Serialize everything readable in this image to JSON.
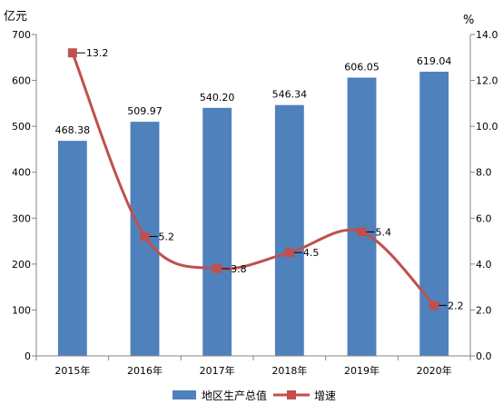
{
  "chart_data": {
    "type": "bar",
    "categories": [
      "2015年",
      "2016年",
      "2017年",
      "2018年",
      "2019年",
      "2020年"
    ],
    "series": [
      {
        "name": "地区生产总值",
        "type": "bar",
        "axis": "left",
        "color": "#4f81bd",
        "values": [
          468.38,
          509.97,
          540.2,
          546.34,
          606.05,
          619.04
        ],
        "labels": [
          "468.38",
          "509.97",
          "540.20",
          "546.34",
          "606.05",
          "619.04"
        ]
      },
      {
        "name": "增速",
        "type": "line",
        "axis": "right",
        "color": "#c0504d",
        "values": [
          13.2,
          5.2,
          3.8,
          4.5,
          5.4,
          2.2
        ],
        "labels": [
          "13.2",
          "5.2",
          "3.8",
          "4.5",
          "5.4",
          "2.2"
        ]
      }
    ],
    "y_left": {
      "unit": "亿元",
      "ylim": [
        0,
        700
      ],
      "ticks": [
        "0",
        "100",
        "200",
        "300",
        "400",
        "500",
        "600",
        "700"
      ]
    },
    "y_right": {
      "unit": "%",
      "ylim": [
        0,
        14
      ],
      "ticks": [
        "0.0",
        "2.0",
        "4.0",
        "6.0",
        "8.0",
        "10.0",
        "12.0",
        "14.0"
      ]
    },
    "legend": {
      "position": "bottom"
    },
    "grid": false
  }
}
